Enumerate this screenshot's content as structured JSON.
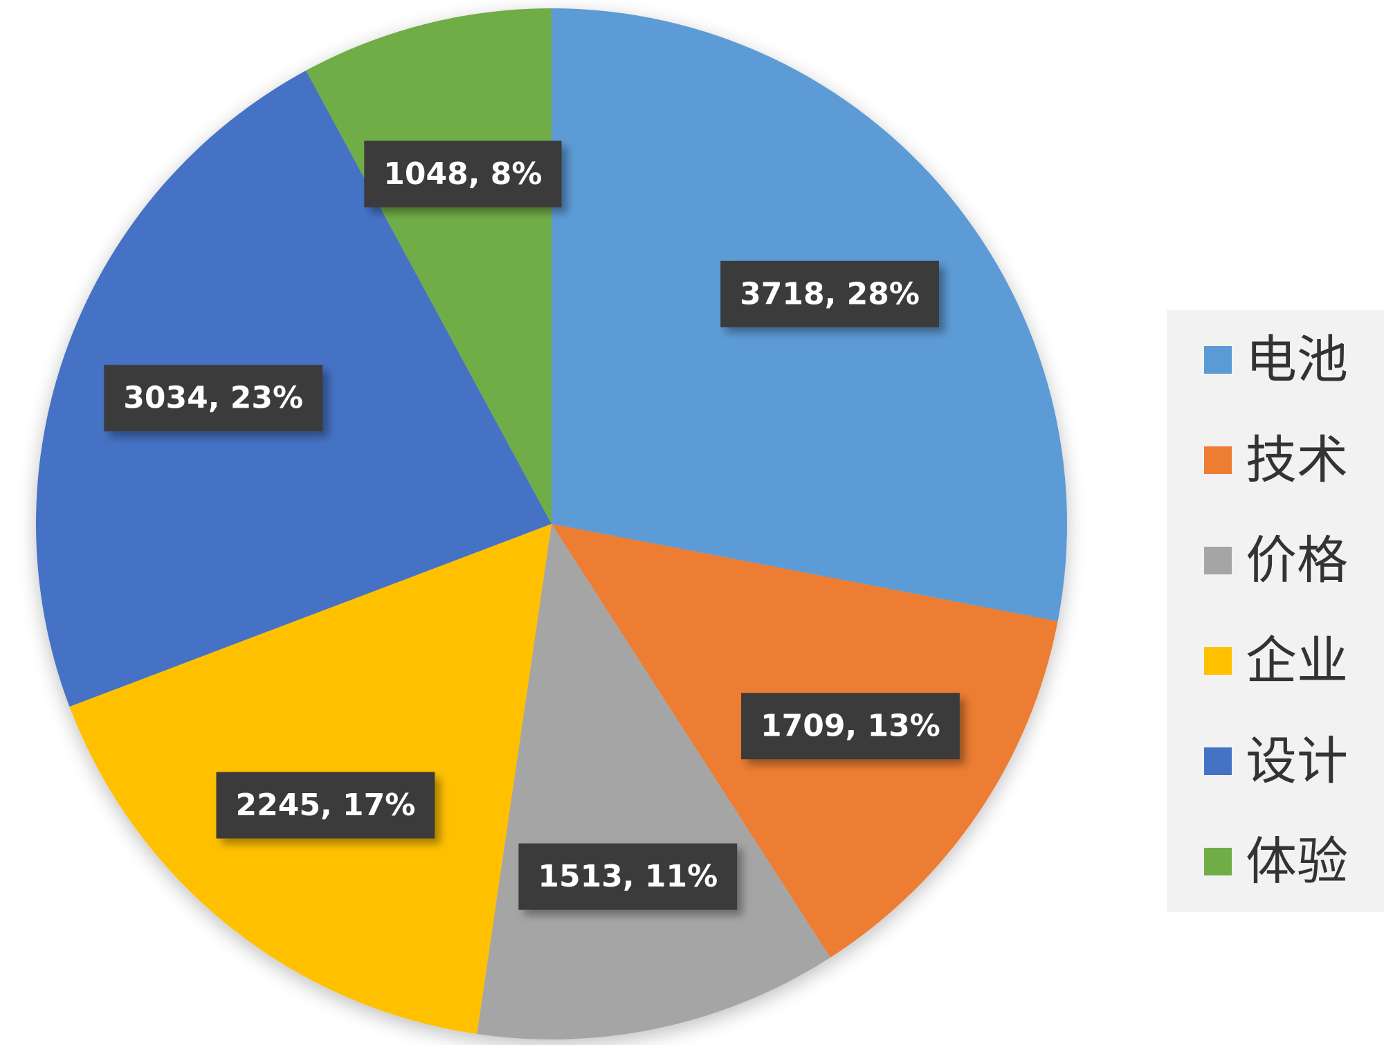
{
  "chart_data": {
    "type": "pie",
    "title": "",
    "legend_position": "right",
    "slices": [
      {
        "label": "电池",
        "value": 3718,
        "percent": "28%",
        "data_label": "3718, 28%",
        "color": "#5B9BD5"
      },
      {
        "label": "技术",
        "value": 1709,
        "percent": "13%",
        "data_label": "1709, 13%",
        "color": "#ED7D31"
      },
      {
        "label": "价格",
        "value": 1513,
        "percent": "11%",
        "data_label": "1513, 11%",
        "color": "#A5A5A5"
      },
      {
        "label": "企业",
        "value": 2245,
        "percent": "17%",
        "data_label": "2245, 17%",
        "color": "#FFC000"
      },
      {
        "label": "设计",
        "value": 3034,
        "percent": "23%",
        "data_label": "3034, 23%",
        "color": "#4472C4"
      },
      {
        "label": "体验",
        "value": 1048,
        "percent": "8%",
        "data_label": "1048, 8%",
        "color": "#70AD47"
      }
    ],
    "label_box_color": "#3A3A3A",
    "legend_bg_color": "#F2F2F2"
  }
}
